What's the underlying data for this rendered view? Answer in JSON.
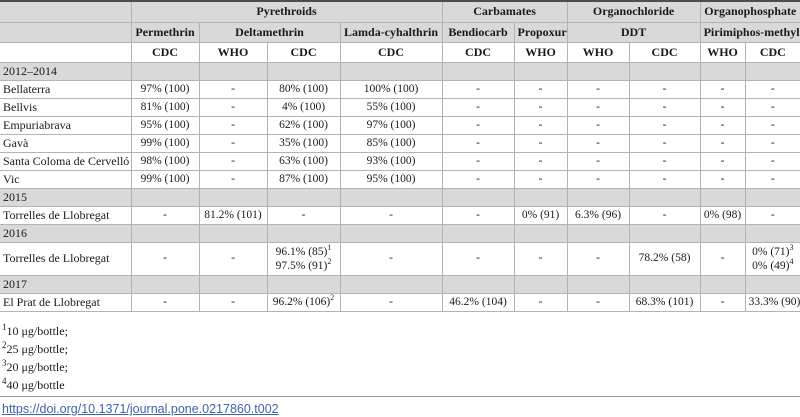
{
  "colors": {
    "header_bg": "#d9d9d9",
    "section_bg": "#d9d9d9",
    "border": "#b3b3b3",
    "border_dark": "#4d4d4d",
    "text": "#1a1a1a",
    "link": "#3c63b0"
  },
  "table": {
    "header": {
      "groups": [
        {
          "label": "Pyrethroids"
        },
        {
          "label": "Carbamates"
        },
        {
          "label": "Organochloride"
        },
        {
          "label": "Organophosphate"
        }
      ],
      "insecticides": [
        {
          "label": "Permethrin"
        },
        {
          "label": "Deltamethrin"
        },
        {
          "label": "Lamda-cyhalthrin"
        },
        {
          "label": "Bendiocarb"
        },
        {
          "label": "Propoxur"
        },
        {
          "label": "DDT"
        },
        {
          "label": "Pirimiphos-methyl"
        }
      ],
      "methods": [
        "CDC",
        "WHO",
        "CDC",
        "CDC",
        "CDC",
        "WHO",
        "WHO",
        "CDC",
        "WHO",
        "CDC"
      ]
    },
    "rows": [
      {
        "type": "section",
        "label": "2012–2014"
      },
      {
        "type": "data",
        "label": "Bellaterra",
        "cells": [
          "97% (100)",
          "-",
          "80% (100)",
          "100% (100)",
          "-",
          "-",
          "-",
          "-",
          "-",
          "-"
        ]
      },
      {
        "type": "data",
        "label": "Bellvis",
        "cells": [
          "81% (100)",
          "-",
          "4% (100)",
          "55% (100)",
          "-",
          "-",
          "-",
          "-",
          "-",
          "-"
        ]
      },
      {
        "type": "data",
        "label": "Empuriabrava",
        "cells": [
          "95% (100)",
          "-",
          "62% (100)",
          "97% (100)",
          "-",
          "-",
          "-",
          "-",
          "-",
          "-"
        ]
      },
      {
        "type": "data",
        "label": "Gavà",
        "cells": [
          "99% (100)",
          "-",
          "35% (100)",
          "85% (100)",
          "-",
          "-",
          "-",
          "-",
          "-",
          "-"
        ]
      },
      {
        "type": "data",
        "label": "Santa Coloma de Cervelló",
        "cells": [
          "98% (100)",
          "-",
          "63% (100)",
          "93% (100)",
          "-",
          "-",
          "-",
          "-",
          "-",
          "-"
        ]
      },
      {
        "type": "data",
        "label": "Vic",
        "cells": [
          "99% (100)",
          "-",
          "87% (100)",
          "95% (100)",
          "-",
          "-",
          "-",
          "-",
          "-",
          "-"
        ]
      },
      {
        "type": "section",
        "label": "2015"
      },
      {
        "type": "data",
        "label": "Torrelles de Llobregat",
        "cells": [
          "-",
          "81.2% (101)",
          "-",
          "-",
          "-",
          "0% (91)",
          "6.3% (96)",
          "-",
          "0% (98)",
          "-"
        ]
      },
      {
        "type": "section",
        "label": "2016"
      },
      {
        "type": "data",
        "label": "Torrelles de Llobregat",
        "cells": [
          "-",
          "-",
          "96.1% (85)^1\n97.5% (91)^2",
          "-",
          "-",
          "-",
          "-",
          "78.2% (58)",
          "-",
          "0% (71)^3\n0% (49)^4"
        ]
      },
      {
        "type": "section",
        "label": "2017"
      },
      {
        "type": "data",
        "label": "El Prat de Llobregat",
        "cells": [
          "-",
          "-",
          "96.2% (106)^2",
          "-",
          "46.2% (104)",
          "-",
          "-",
          "68.3% (101)",
          "-",
          "33.3% (90)"
        ]
      }
    ]
  },
  "footnotes": [
    {
      "sup": "1",
      "text": "10 μg/bottle;"
    },
    {
      "sup": "2",
      "text": "25 μg/bottle;"
    },
    {
      "sup": "3",
      "text": "20 μg/bottle;"
    },
    {
      "sup": "4",
      "text": "40 μg/bottle"
    }
  ],
  "doi": {
    "label": "https://doi.org/10.1371/journal.pone.0217860.t002",
    "href": "https://doi.org/10.1371/journal.pone.0217860.t002"
  }
}
